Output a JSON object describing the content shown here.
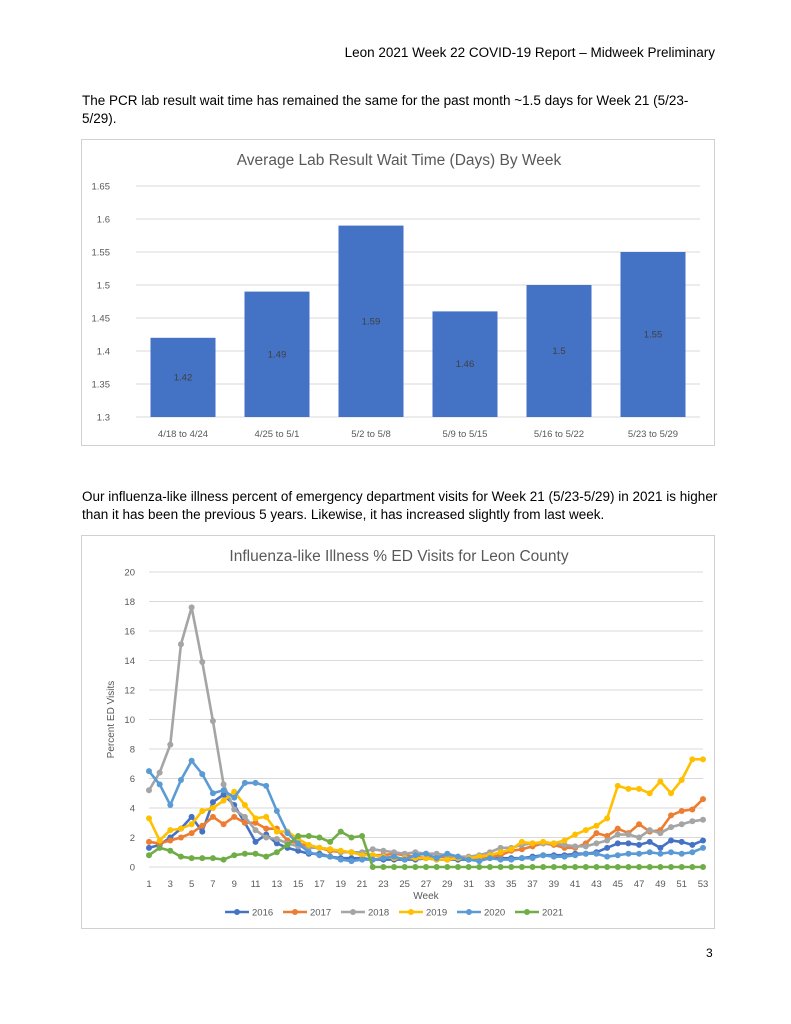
{
  "header": {
    "title": "Leon 2021 Week 22 COVID-19 Report – Midweek Preliminary"
  },
  "paragraphs": {
    "p1": "The PCR lab result wait time has remained the same for the past month ~1.5 days for Week 21 (5/23-5/29).",
    "p2": "Our influenza-like illness percent of emergency department visits for Week 21 (5/23-5/29) in 2021 is higher than it has been the previous 5 years. Likewise, it has increased slightly from last week."
  },
  "page_number": "3",
  "colors": {
    "bar": "#4472c4",
    "grid": "#d9d9d9",
    "axis_text": "#595959",
    "title_text": "#595959",
    "s2016": "#4472c4",
    "s2017": "#ed7d31",
    "s2018": "#a5a5a5",
    "s2019": "#ffc000",
    "s2020": "#5b9bd5",
    "s2021": "#70ad47"
  },
  "chart_data": [
    {
      "type": "bar",
      "title": "Average Lab Result Wait Time (Days) By Week",
      "categories": [
        "4/18 to 4/24",
        "4/25 to 5/1",
        "5/2 to 5/8",
        "5/9 to 5/15",
        "5/16 to 5/22",
        "5/23 to 5/29"
      ],
      "values": [
        1.42,
        1.49,
        1.59,
        1.46,
        1.5,
        1.55
      ],
      "data_labels": [
        "1.42",
        "1.49",
        "1.59",
        "1.46",
        "1.5",
        "1.55"
      ],
      "ylim": [
        1.3,
        1.65
      ],
      "y_ticks": [
        "1.3",
        "1.35",
        "1.4",
        "1.45",
        "1.5",
        "1.55",
        "1.6",
        "1.65"
      ],
      "grid": true,
      "legend": "none"
    },
    {
      "type": "line",
      "title": "Influenza-like Illness % ED Visits for Leon County",
      "xlabel": "Week",
      "ylabel": "Percent ED Visits",
      "ylim": [
        0,
        20
      ],
      "xlim": [
        1,
        53
      ],
      "y_ticks": [
        "0",
        "2",
        "4",
        "6",
        "8",
        "10",
        "12",
        "14",
        "16",
        "18",
        "20"
      ],
      "x_ticks": [
        "1",
        "3",
        "5",
        "7",
        "9",
        "11",
        "13",
        "15",
        "17",
        "19",
        "21",
        "23",
        "25",
        "27",
        "29",
        "31",
        "33",
        "35",
        "37",
        "39",
        "41",
        "43",
        "45",
        "47",
        "49",
        "51",
        "53"
      ],
      "grid": true,
      "legend": "bottom",
      "series": [
        {
          "name": "2016",
          "x_start": 1,
          "values": [
            1.3,
            1.5,
            2.0,
            2.6,
            3.4,
            2.4,
            4.4,
            4.9,
            4.2,
            3.0,
            1.7,
            2.2,
            1.6,
            1.3,
            1.1,
            0.9,
            0.9,
            0.7,
            0.6,
            0.6,
            0.6,
            0.5,
            0.5,
            0.5,
            0.5,
            0.5,
            0.6,
            0.5,
            0.5,
            0.5,
            0.5,
            0.5,
            0.6,
            0.6,
            0.6,
            0.6,
            0.7,
            0.8,
            0.8,
            0.8,
            0.9,
            0.9,
            1.0,
            1.3,
            1.6,
            1.6,
            1.5,
            1.7,
            1.3,
            1.8,
            1.7,
            1.5,
            1.8
          ]
        },
        {
          "name": "2017",
          "x_start": 1,
          "values": [
            1.7,
            1.6,
            1.8,
            2.0,
            2.3,
            2.8,
            3.4,
            2.9,
            3.4,
            3.0,
            3.0,
            2.6,
            2.6,
            1.8,
            1.6,
            1.4,
            1.3,
            1.1,
            1.0,
            1.0,
            0.9,
            0.8,
            0.8,
            0.9,
            0.8,
            0.7,
            0.6,
            0.7,
            0.7,
            0.6,
            0.6,
            0.6,
            0.7,
            0.8,
            1.1,
            1.2,
            1.4,
            1.6,
            1.5,
            1.3,
            1.3,
            1.6,
            2.3,
            2.1,
            2.6,
            2.3,
            2.9,
            2.4,
            2.5,
            3.5,
            3.8,
            3.9,
            4.6
          ]
        },
        {
          "name": "2018",
          "x_start": 1,
          "values": [
            5.2,
            6.4,
            8.3,
            15.1,
            17.6,
            13.9,
            9.9,
            5.6,
            3.9,
            3.4,
            2.5,
            2.0,
            1.9,
            1.6,
            1.4,
            1.3,
            1.3,
            1.2,
            1.0,
            1.0,
            1.0,
            1.2,
            1.1,
            1.0,
            0.9,
            1.0,
            0.9,
            0.9,
            0.8,
            0.7,
            0.7,
            0.8,
            1.0,
            1.3,
            1.3,
            1.5,
            1.6,
            1.6,
            1.6,
            1.5,
            1.4,
            1.4,
            1.6,
            1.8,
            2.2,
            2.2,
            2.0,
            2.5,
            2.3,
            2.7,
            2.9,
            3.1,
            3.2
          ]
        },
        {
          "name": "2019",
          "x_start": 1,
          "values": [
            3.3,
            1.8,
            2.5,
            2.6,
            2.9,
            3.8,
            4.0,
            4.5,
            5.1,
            4.2,
            3.3,
            3.4,
            2.4,
            2.4,
            1.9,
            1.5,
            1.3,
            1.2,
            1.1,
            1.0,
            0.8,
            0.8,
            0.7,
            0.6,
            0.6,
            0.6,
            0.6,
            0.5,
            0.5,
            0.6,
            0.6,
            0.7,
            0.8,
            1.0,
            1.2,
            1.7,
            1.6,
            1.7,
            1.6,
            1.8,
            2.2,
            2.5,
            2.8,
            3.3,
            5.5,
            5.3,
            5.3,
            5.0,
            5.8,
            5.0,
            5.9,
            7.3,
            7.3
          ]
        },
        {
          "name": "2020",
          "x_start": 1,
          "values": [
            6.5,
            5.6,
            4.2,
            5.9,
            7.2,
            6.3,
            5.0,
            5.2,
            4.7,
            5.7,
            5.7,
            5.5,
            3.8,
            2.3,
            1.6,
            1.0,
            0.8,
            0.7,
            0.5,
            0.4,
            0.5,
            0.5,
            0.6,
            0.7,
            0.5,
            0.8,
            0.9,
            0.6,
            0.9,
            0.7,
            0.5,
            0.4,
            0.6,
            0.5,
            0.5,
            0.6,
            0.6,
            0.8,
            0.7,
            0.7,
            0.8,
            0.9,
            0.9,
            0.7,
            0.8,
            0.9,
            0.9,
            1.0,
            0.9,
            1.0,
            0.9,
            1.0,
            1.3
          ]
        },
        {
          "name": "2021",
          "x_start": 1,
          "values": [
            0.8,
            1.3,
            1.1,
            0.7,
            0.6,
            0.6,
            0.6,
            0.5,
            0.8,
            0.9,
            0.9,
            0.7,
            1.0,
            1.5,
            2.1,
            2.1,
            2.0,
            1.7,
            2.4,
            2.0,
            2.1,
            0.0,
            0.0,
            0.0,
            0.0,
            0.0,
            0.0,
            0.0,
            0.0,
            0.0,
            0.0,
            0.0,
            0.0,
            0.0,
            0.0,
            0.0,
            0.0,
            0.0,
            0.0,
            0.0,
            0.0,
            0.0,
            0.0,
            0.0,
            0.0,
            0.0,
            0.0,
            0.0,
            0.0,
            0.0,
            0.0,
            0.0,
            0.0
          ]
        }
      ]
    }
  ]
}
